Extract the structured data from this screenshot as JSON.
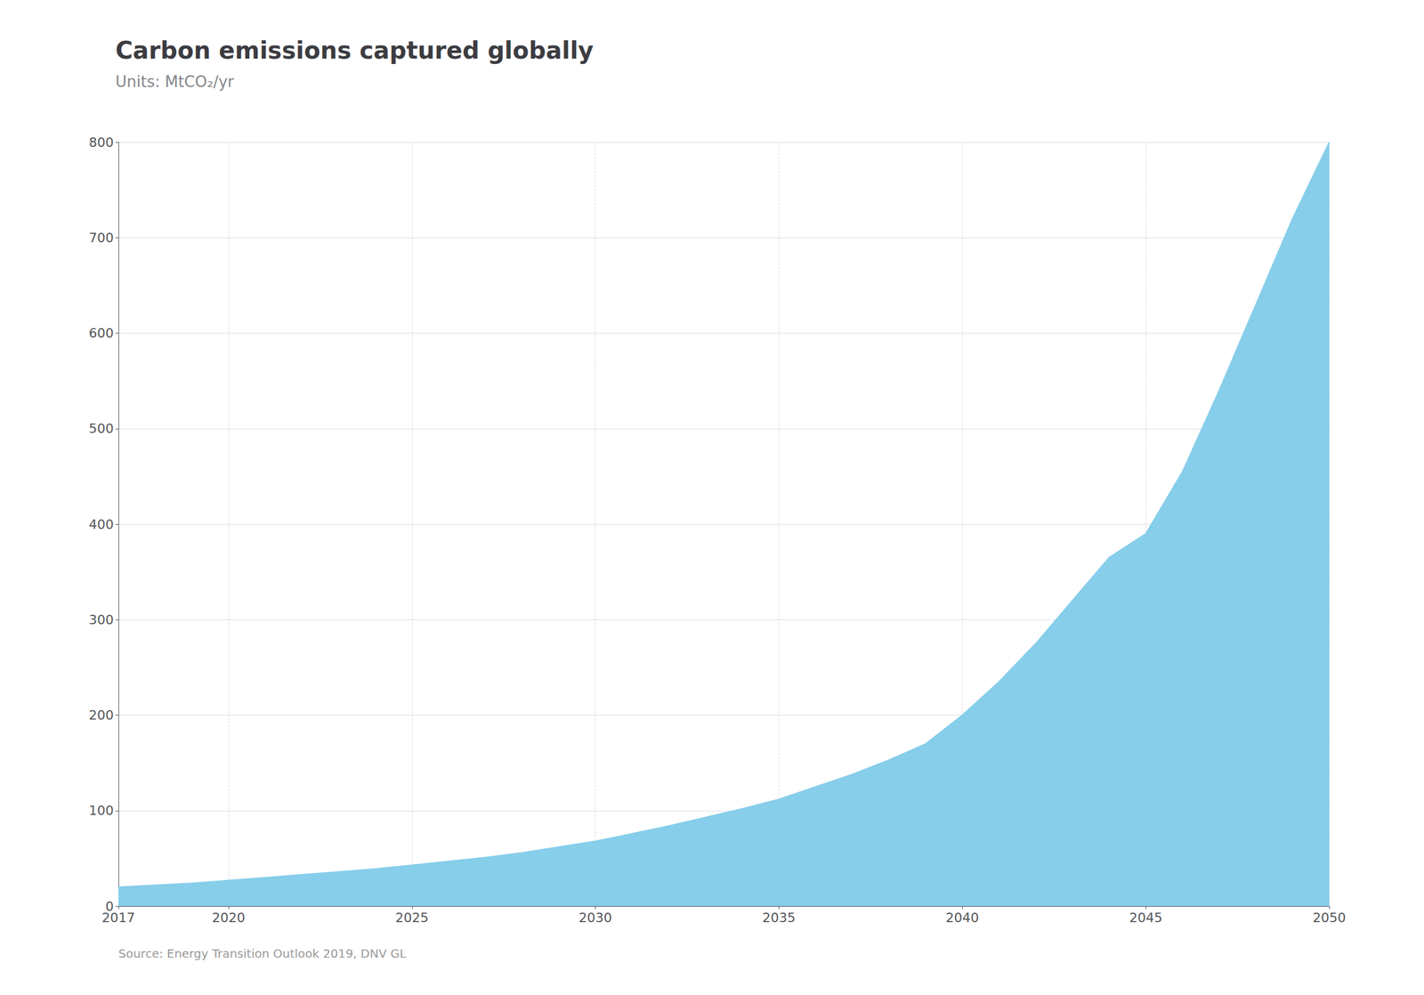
{
  "chart_data": {
    "type": "area",
    "title": "Carbon emissions captured globally",
    "subtitle": "Units: MtCO₂/yr",
    "annotations": [
      "Source: Energy Transition Outlook 2019, DNV GL"
    ],
    "x": [
      2017,
      2018,
      2019,
      2020,
      2021,
      2022,
      2023,
      2024,
      2025,
      2026,
      2027,
      2028,
      2029,
      2030,
      2031,
      2032,
      2033,
      2034,
      2035,
      2036,
      2037,
      2038,
      2039,
      2040,
      2041,
      2042,
      2043,
      2044,
      2045,
      2046,
      2047,
      2048,
      2049,
      2050
    ],
    "values": [
      20,
      22,
      24,
      27,
      30,
      33,
      36,
      39,
      43,
      47,
      51,
      56,
      62,
      68,
      76,
      84,
      93,
      102,
      112,
      125,
      138,
      153,
      170,
      200,
      235,
      275,
      320,
      365,
      390,
      455,
      540,
      630,
      720,
      800
    ],
    "color": "#87CEEB",
    "xlim": [
      2017,
      2050
    ],
    "xticks": [
      2017,
      2020,
      2025,
      2030,
      2035,
      2040,
      2045,
      2050
    ],
    "ylim": [
      0,
      800
    ],
    "yticks": [
      0,
      100,
      200,
      300,
      400,
      500,
      600,
      700,
      800
    ],
    "grid": true
  }
}
